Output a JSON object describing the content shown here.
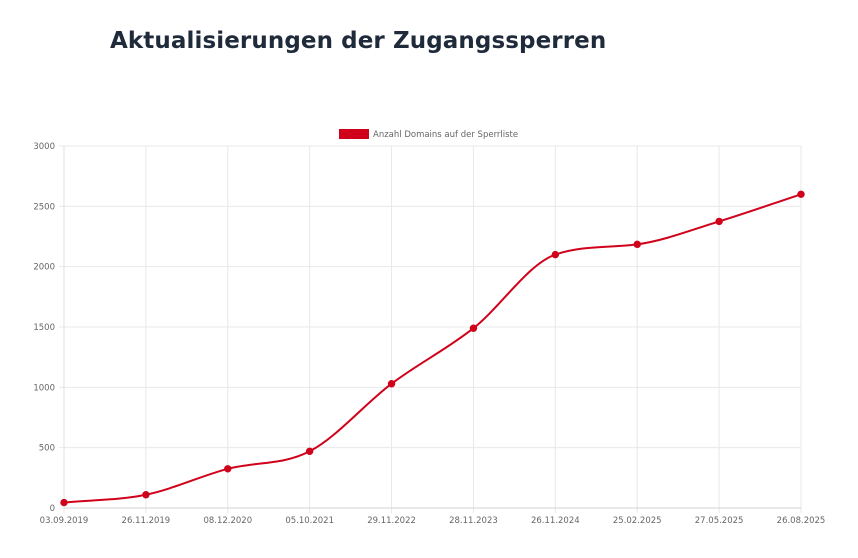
{
  "page": {
    "title": "Aktualisierungen der Zugangssperren"
  },
  "chart_data": {
    "type": "line",
    "title": "",
    "xlabel": "",
    "ylabel": "",
    "categories": [
      "03.09.2019",
      "26.11.2019",
      "08.12.2020",
      "05.10.2021",
      "29.11.2022",
      "28.11.2023",
      "26.11.2024",
      "25.02.2025",
      "27.05.2025",
      "26.08.2025"
    ],
    "series": [
      {
        "name": "Anzahl Domains auf der Sperrliste",
        "color": "#d0021b",
        "values": [
          45,
          110,
          325,
          470,
          1030,
          1490,
          2100,
          2185,
          2375,
          2600
        ]
      }
    ],
    "ylim": [
      0,
      3000
    ],
    "yticks": [
      0,
      500,
      1000,
      1500,
      2000,
      2500,
      3000
    ],
    "grid": true,
    "legend_position": "top-center",
    "smooth": true
  }
}
